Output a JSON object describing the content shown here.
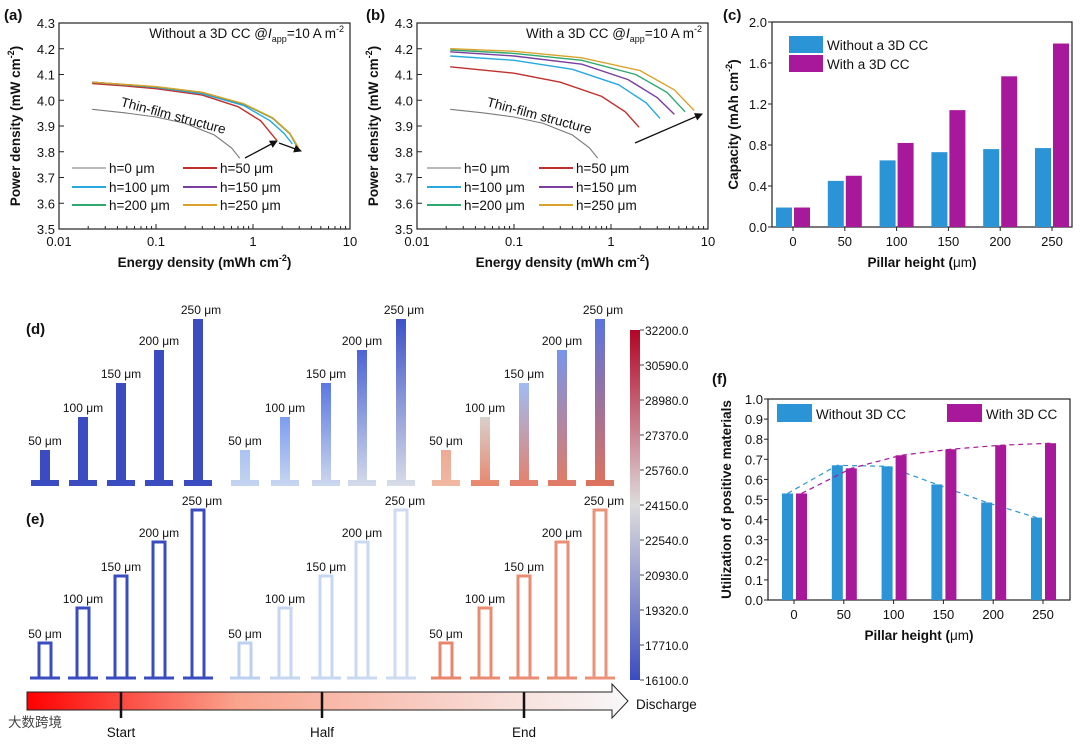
{
  "panel_labels": {
    "a": "(a)",
    "b": "(b)",
    "c": "(c)",
    "d": "(d)",
    "e": "(e)",
    "f": "(f)"
  },
  "chart_data": [
    {
      "id": "a",
      "type": "line",
      "xscale": "log",
      "xlim": [
        0.01,
        10
      ],
      "ylim": [
        3.5,
        4.3
      ],
      "xticks": [
        "0.01",
        "0.1",
        "1",
        "10"
      ],
      "yticks": [
        "3.5",
        "3.6",
        "3.7",
        "3.8",
        "3.9",
        "4.0",
        "4.1",
        "4.2",
        "4.3"
      ],
      "xlabel": {
        "text": "Energy density (mWh cm",
        "sup": "-2",
        "tail": ")"
      },
      "ylabel": {
        "text": "Power density (mW cm",
        "sup": "-2",
        "tail": ")"
      },
      "annotation": {
        "prefix": "Without a 3D CC @",
        "var": "I",
        "sub": "app",
        "suffix": "=10 A m",
        "sup": "-2"
      },
      "thin_film_label": "Thin-film structure",
      "series": [
        {
          "name": "h=0 μm",
          "color": "#7a7a7a",
          "points": [
            [
              0.022,
              3.965
            ],
            [
              0.05,
              3.95
            ],
            [
              0.1,
              3.935
            ],
            [
              0.2,
              3.91
            ],
            [
              0.4,
              3.865
            ],
            [
              0.6,
              3.815
            ],
            [
              0.73,
              3.775
            ]
          ]
        },
        {
          "name": "h=50 μm",
          "color": "#c0302c",
          "points": [
            [
              0.022,
              4.065
            ],
            [
              0.05,
              4.055
            ],
            [
              0.1,
              4.045
            ],
            [
              0.3,
              4.02
            ],
            [
              0.7,
              3.975
            ],
            [
              1.2,
              3.92
            ],
            [
              1.75,
              3.845
            ]
          ]
        },
        {
          "name": "h=100 μm",
          "color": "#27a8df",
          "points": [
            [
              0.022,
              4.07
            ],
            [
              0.1,
              4.05
            ],
            [
              0.3,
              4.025
            ],
            [
              0.8,
              3.98
            ],
            [
              1.5,
              3.92
            ],
            [
              2.1,
              3.87
            ],
            [
              2.55,
              3.83
            ]
          ]
        },
        {
          "name": "h=150 μm",
          "color": "#7b3fa0",
          "points": [
            [
              0.022,
              4.07
            ],
            [
              0.1,
              4.052
            ],
            [
              0.3,
              4.03
            ],
            [
              0.8,
              3.985
            ],
            [
              1.6,
              3.93
            ],
            [
              2.4,
              3.87
            ],
            [
              2.9,
              3.815
            ]
          ]
        },
        {
          "name": "h=200 μm",
          "color": "#2eaa70",
          "points": [
            [
              0.022,
              4.07
            ],
            [
              0.1,
              4.052
            ],
            [
              0.3,
              4.03
            ],
            [
              0.8,
              3.985
            ],
            [
              1.6,
              3.93
            ],
            [
              2.4,
              3.87
            ],
            [
              2.9,
              3.815
            ]
          ]
        },
        {
          "name": "h=250 μm",
          "color": "#dba22a",
          "points": [
            [
              0.022,
              4.07
            ],
            [
              0.1,
              4.053
            ],
            [
              0.3,
              4.031
            ],
            [
              0.8,
              3.987
            ],
            [
              1.6,
              3.932
            ],
            [
              2.4,
              3.872
            ],
            [
              2.95,
              3.815
            ]
          ]
        }
      ]
    },
    {
      "id": "b",
      "type": "line",
      "xscale": "log",
      "xlim": [
        0.01,
        10
      ],
      "ylim": [
        3.5,
        4.3
      ],
      "xticks": [
        "0.01",
        "0.1",
        "1",
        "10"
      ],
      "yticks": [
        "3.5",
        "3.6",
        "3.7",
        "3.8",
        "3.9",
        "4.0",
        "4.1",
        "4.2",
        "4.3"
      ],
      "xlabel": {
        "text": "Energy density (mWh cm",
        "sup": "-2",
        "tail": ")"
      },
      "ylabel": {
        "text": "Power density (mW cm",
        "sup": "-2",
        "tail": ")"
      },
      "annotation": {
        "prefix": "With a 3D CC @",
        "var": "I",
        "sub": "app",
        "suffix": "=10 A m",
        "sup": "-2"
      },
      "thin_film_label": "Thin-film structure",
      "series": [
        {
          "name": "h=0 μm",
          "color": "#7a7a7a",
          "points": [
            [
              0.022,
              3.965
            ],
            [
              0.05,
              3.95
            ],
            [
              0.1,
              3.935
            ],
            [
              0.2,
              3.91
            ],
            [
              0.4,
              3.865
            ],
            [
              0.6,
              3.815
            ],
            [
              0.73,
              3.775
            ]
          ]
        },
        {
          "name": "h=50 μm",
          "color": "#c0302c",
          "points": [
            [
              0.022,
              4.13
            ],
            [
              0.1,
              4.105
            ],
            [
              0.3,
              4.07
            ],
            [
              0.8,
              4.015
            ],
            [
              1.4,
              3.955
            ],
            [
              1.95,
              3.895
            ]
          ]
        },
        {
          "name": "h=100 μm",
          "color": "#27a8df",
          "points": [
            [
              0.022,
              4.172
            ],
            [
              0.1,
              4.155
            ],
            [
              0.4,
              4.12
            ],
            [
              1.2,
              4.06
            ],
            [
              2.3,
              3.99
            ],
            [
              3.2,
              3.93
            ]
          ]
        },
        {
          "name": "h=150 μm",
          "color": "#7b3fa0",
          "points": [
            [
              0.022,
              4.188
            ],
            [
              0.1,
              4.172
            ],
            [
              0.5,
              4.14
            ],
            [
              1.5,
              4.08
            ],
            [
              3.0,
              4.01
            ],
            [
              4.5,
              3.945
            ]
          ]
        },
        {
          "name": "h=200 μm",
          "color": "#2eaa70",
          "points": [
            [
              0.022,
              4.195
            ],
            [
              0.1,
              4.182
            ],
            [
              0.5,
              4.155
            ],
            [
              1.8,
              4.1
            ],
            [
              3.8,
              4.03
            ],
            [
              5.8,
              3.955
            ]
          ]
        },
        {
          "name": "h=250 μm",
          "color": "#dba22a",
          "points": [
            [
              0.022,
              4.2
            ],
            [
              0.1,
              4.19
            ],
            [
              0.5,
              4.165
            ],
            [
              2.0,
              4.115
            ],
            [
              4.5,
              4.04
            ],
            [
              7.2,
              3.96
            ]
          ]
        }
      ]
    },
    {
      "id": "c",
      "type": "bar",
      "categories": [
        "0",
        "50",
        "100",
        "150",
        "200",
        "250"
      ],
      "ylim": [
        0,
        2.0
      ],
      "yticks": [
        "0.0",
        "0.4",
        "0.8",
        "1.2",
        "1.6",
        "2.0"
      ],
      "xlabel": {
        "text": "Pillar height (",
        "unit": "μm",
        "tail": ")"
      },
      "ylabel": {
        "text": "Capacity (mAh cm",
        "sup": "-2",
        "tail": ")"
      },
      "series": [
        {
          "name": "Without a 3D CC",
          "color": "#2b94d6",
          "values": [
            0.19,
            0.45,
            0.65,
            0.73,
            0.76,
            0.77
          ]
        },
        {
          "name": "With a 3D CC",
          "color": "#a8189a",
          "values": [
            0.19,
            0.5,
            0.82,
            1.14,
            1.47,
            1.79
          ]
        }
      ]
    },
    {
      "id": "f",
      "type": "bar",
      "categories": [
        "0",
        "50",
        "100",
        "150",
        "200",
        "250"
      ],
      "ylim": [
        0,
        1.0
      ],
      "yticks": [
        "0.0",
        "0.1",
        "0.2",
        "0.3",
        "0.4",
        "0.5",
        "0.6",
        "0.7",
        "0.8",
        "0.9",
        "1.0"
      ],
      "xlabel": {
        "text": "Pillar height (",
        "unit": "μm",
        "tail": ")"
      },
      "ylabel": {
        "text": "Utilization of positive materials"
      },
      "trend_lines": "dashed",
      "series": [
        {
          "name": "Without 3D CC",
          "color": "#2b94d6",
          "values": [
            0.53,
            0.67,
            0.665,
            0.575,
            0.485,
            0.41
          ]
        },
        {
          "name": "With 3D CC",
          "color": "#a8189a",
          "values": [
            0.53,
            0.655,
            0.72,
            0.75,
            0.77,
            0.78
          ]
        }
      ]
    }
  ],
  "pillars": {
    "labels": [
      "50 μm",
      "100 μm",
      "150 μm",
      "200 μm",
      "250 μm"
    ],
    "d_groups": [
      {
        "top": [
          "#3a4cc0",
          "#3a4cc0",
          "#3a4cc0",
          "#3a4cc0",
          "#3a4cc0"
        ],
        "bottom": [
          "#3a4cc0",
          "#3a4cc0",
          "#3a4cc0",
          "#3a4cc0",
          "#3a4cc0"
        ]
      },
      {
        "top": [
          "#a9c3f2",
          "#7c9df0",
          "#5a78e2",
          "#4c64d6",
          "#3e52c8"
        ],
        "bottom": [
          "#c4d4f0",
          "#c8d6f0",
          "#cdd8ee",
          "#d3dbea",
          "#d8dde8"
        ]
      },
      {
        "top": [
          "#eeaa94",
          "#d8d0cc",
          "#9fbcf4",
          "#7895ec",
          "#5a74de"
        ],
        "bottom": [
          "#f0b8a2",
          "#e8866c",
          "#e6806a",
          "#e27a64",
          "#de725c"
        ]
      }
    ],
    "e_groups": [
      {
        "color": [
          "#3a4cc0",
          "#3a4cc0",
          "#3a4cc0",
          "#3a4cc0",
          "#3a4cc0"
        ]
      },
      {
        "color": [
          "#bcd0f2",
          "#c4d6f2",
          "#c6d7f2",
          "#cad9f2",
          "#cedbf1"
        ]
      },
      {
        "color": [
          "#e8866c",
          "#e98b70",
          "#e98c72",
          "#ea8f74",
          "#eb9278"
        ]
      }
    ]
  },
  "colorbar": {
    "ticks": [
      "32200.0",
      "30590.0",
      "28980.0",
      "27370.0",
      "25760.0",
      "24150.0",
      "22540.0",
      "20930.0",
      "19320.0",
      "17710.0",
      "16100.0"
    ],
    "colors": {
      "high": "#b40426",
      "mid": "#dddcdc",
      "low": "#3b4cc0"
    }
  },
  "discharge": {
    "label": "Discharge",
    "stages": [
      "Start",
      "Half",
      "End"
    ],
    "colors": {
      "start": "#ff0000",
      "end": "#f8f8fa"
    }
  },
  "watermark": "大数跨境"
}
